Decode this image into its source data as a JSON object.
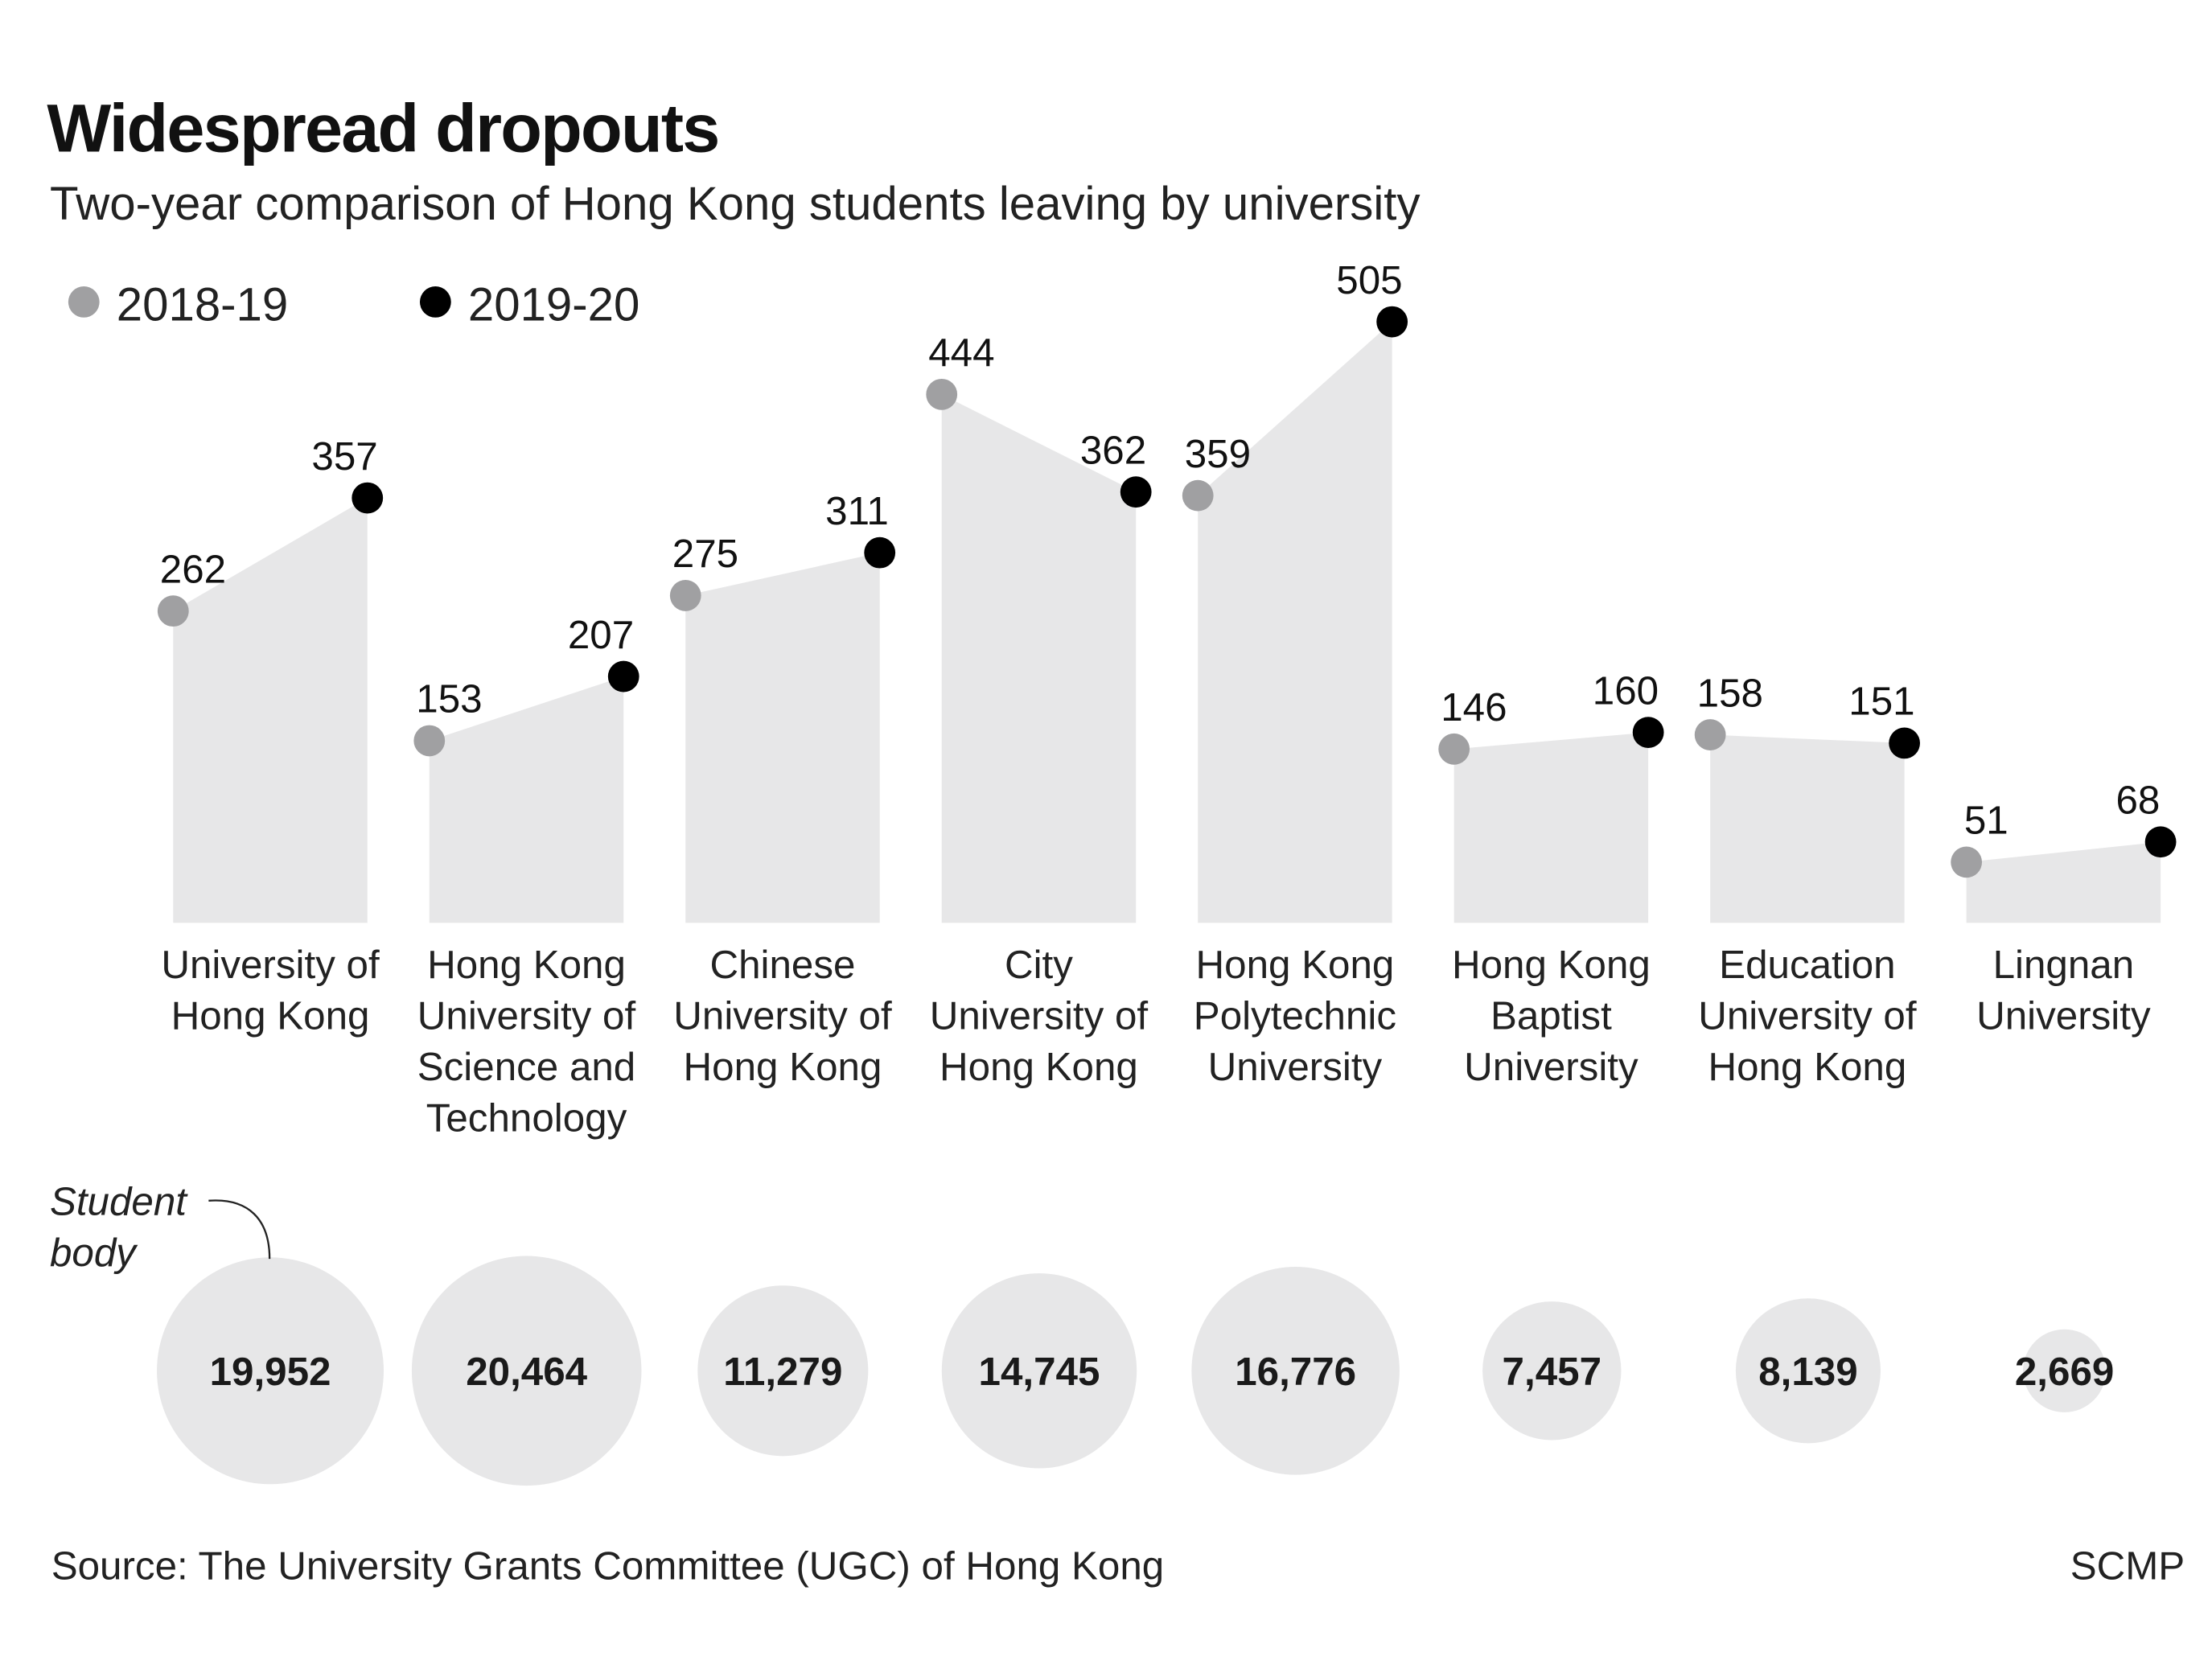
{
  "chart_data": {
    "type": "line",
    "title": "Widespread dropouts",
    "subtitle": "Two-year comparison of Hong Kong students leaving by university",
    "legend": {
      "placement": "top-left",
      "entries": [
        {
          "name": "2018-19",
          "color": "#a0a0a2"
        },
        {
          "name": "2019-20",
          "color": "#000000"
        }
      ]
    },
    "area_color": "#e7e7e8",
    "categories": [
      [
        "University of",
        "Hong Kong"
      ],
      [
        "Hong Kong",
        "University of",
        "Science and",
        "Technology"
      ],
      [
        "Chinese",
        "University of",
        "Hong Kong"
      ],
      [
        "City",
        "University of",
        "Hong Kong"
      ],
      [
        "Hong Kong",
        "Polytechnic",
        "University"
      ],
      [
        "Hong Kong",
        "Baptist",
        "University"
      ],
      [
        "Education",
        "University of",
        "Hong Kong"
      ],
      [
        "Lingnan",
        "University"
      ]
    ],
    "series": [
      {
        "name": "2018-19",
        "values": [
          262,
          153,
          275,
          444,
          359,
          146,
          158,
          51
        ]
      },
      {
        "name": "2019-20",
        "values": [
          357,
          207,
          311,
          362,
          505,
          160,
          151,
          68
        ]
      }
    ],
    "ylim": [
      0,
      505
    ],
    "grid": false,
    "student_body": {
      "label": [
        "Student",
        "body"
      ],
      "values": [
        19952,
        20464,
        11279,
        14745,
        16776,
        7457,
        8139,
        2669
      ],
      "value_labels": [
        "19,952",
        "20,464",
        "11,279",
        "14,745",
        "16,776",
        "7,457",
        "8,139",
        "2,669"
      ]
    },
    "source": "Source: The University Grants Committee (UGC) of Hong Kong",
    "credit": "SCMP"
  }
}
